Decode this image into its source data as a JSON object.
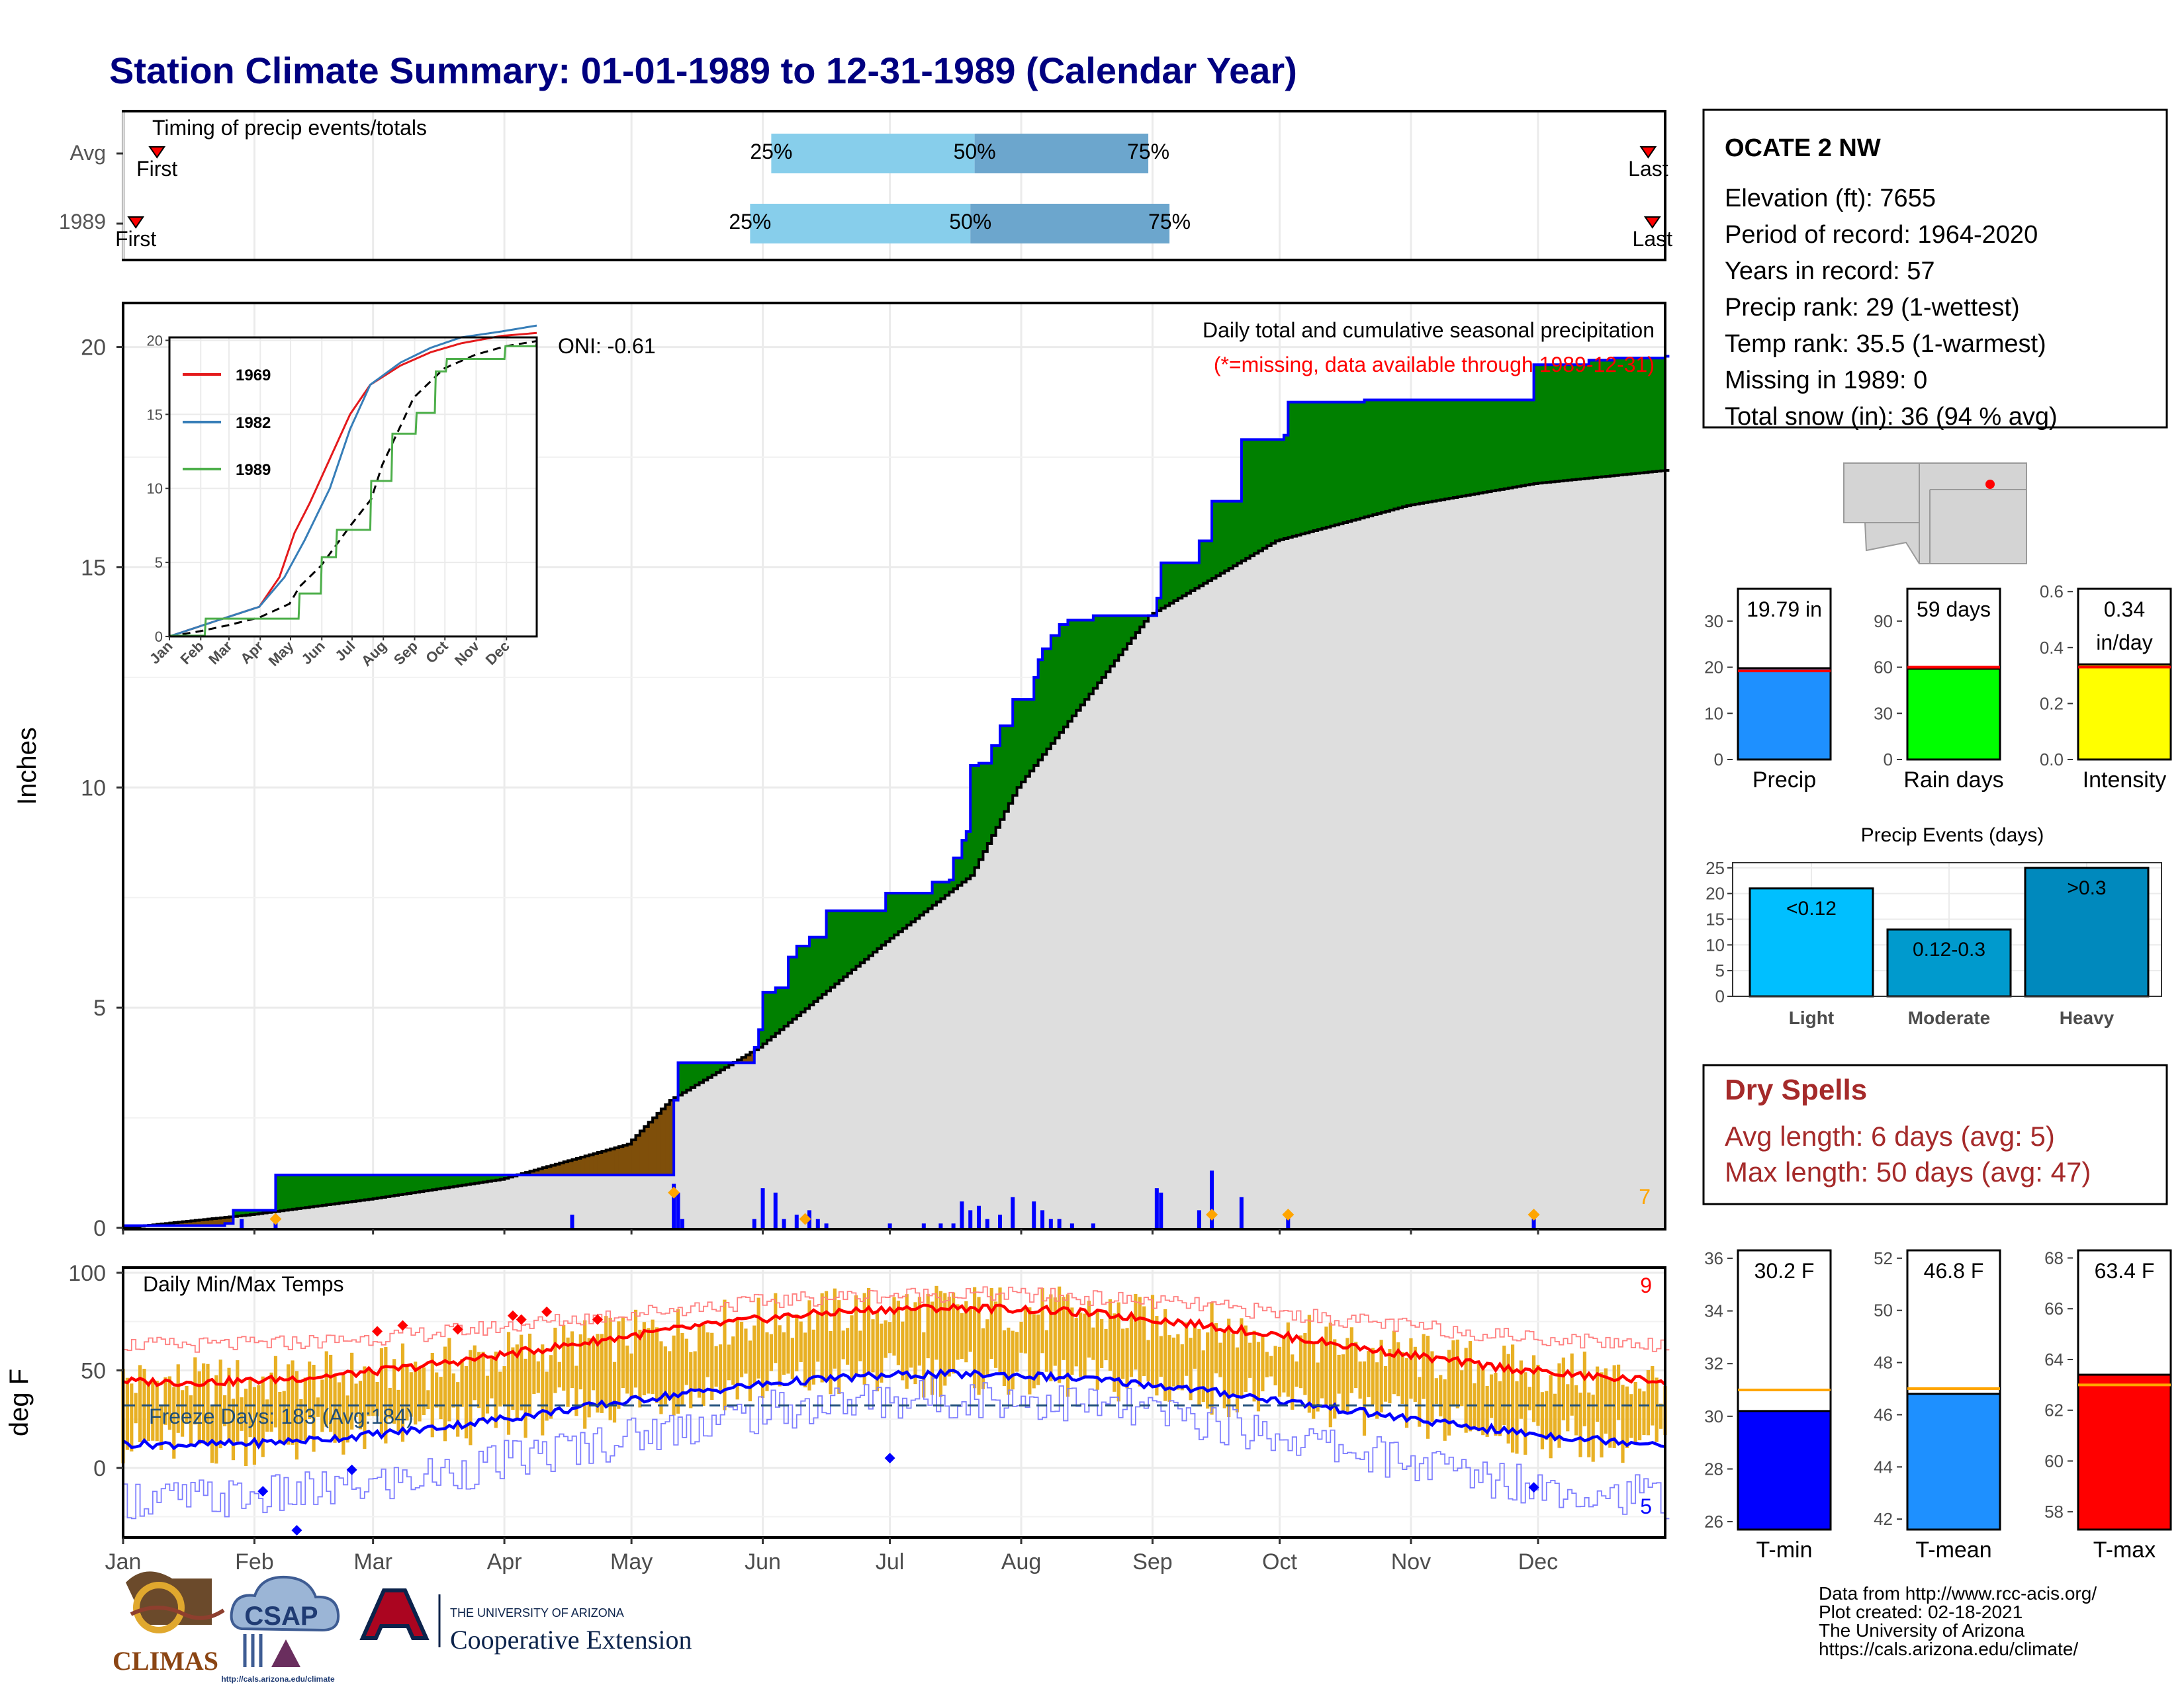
{
  "page": {
    "title": "Station Climate Summary: 01-01-1989 to 12-31-1989 (Calendar Year)",
    "months": [
      "Jan",
      "Feb",
      "Mar",
      "Apr",
      "May",
      "Jun",
      "Jul",
      "Aug",
      "Sep",
      "Oct",
      "Nov",
      "Dec"
    ],
    "months_tilted": [
      "Jan",
      "Feb",
      "Mar",
      "Apr",
      "May",
      "Jun",
      "Jul",
      "Aug",
      "Sep",
      "Oct",
      "Nov",
      "Dec"
    ],
    "footer": {
      "line1": "Data from http://www.rcc-acis.org/",
      "line2": "Plot created: 02-18-2021",
      "line3": "The University of Arizona",
      "line4": "https://cals.arizona.edu/climate/"
    },
    "logos": {
      "climas": "CLIMAS",
      "csap": "CSAP",
      "csap_url": "http://cals.arizona.edu/climate",
      "ua_small": "THE UNIVERSITY OF ARIZONA",
      "coop": "Cooperative Extension"
    }
  },
  "chart_data": [
    {
      "type": "bar",
      "panel": "timing",
      "title": "Timing of precip events/totals",
      "categories": [
        "Avg",
        "1989"
      ],
      "series": [
        {
          "name": "Avg",
          "first": "01-09",
          "p25": "06-03",
          "p50": "07-21",
          "p75": "08-31",
          "last": "12-27"
        },
        {
          "name": "1989",
          "first": "01-04",
          "p25": "05-29",
          "p50": "07-20",
          "p75": "09-05",
          "last": "12-28"
        }
      ],
      "labels": {
        "first": "First",
        "last": "Last",
        "p25": "25%",
        "p50": "50%",
        "p75": "75%"
      }
    },
    {
      "type": "area",
      "panel": "precipitation",
      "title": "Daily total and cumulative seasonal precipitation",
      "subtitle": "(*=missing, data available through 1989-12-31)",
      "oni": "ONI: -0.61",
      "ylabel": "Inches",
      "ylim": [
        0,
        21
      ],
      "yticks": [
        0,
        5,
        10,
        15,
        20
      ],
      "corner_count": "7",
      "cumulative_1989": [
        [
          1,
          0.05
        ],
        [
          25,
          0.1
        ],
        [
          27,
          0.4
        ],
        [
          36,
          0.4
        ],
        [
          37,
          1.2
        ],
        [
          130,
          1.2
        ],
        [
          131,
          2.9
        ],
        [
          132,
          3.75
        ],
        [
          150,
          4.1
        ],
        [
          151,
          4.5
        ],
        [
          152,
          5.35
        ],
        [
          155,
          5.45
        ],
        [
          158,
          6.15
        ],
        [
          160,
          6.4
        ],
        [
          163,
          6.6
        ],
        [
          167,
          7.2
        ],
        [
          181,
          7.6
        ],
        [
          192,
          7.85
        ],
        [
          196,
          7.9
        ],
        [
          197,
          8.4
        ],
        [
          199,
          8.8
        ],
        [
          200,
          9.0
        ],
        [
          201,
          10.5
        ],
        [
          203,
          10.55
        ],
        [
          206,
          10.95
        ],
        [
          208,
          11.4
        ],
        [
          211,
          12.0
        ],
        [
          216,
          12.5
        ],
        [
          217,
          12.9
        ],
        [
          218,
          13.15
        ],
        [
          220,
          13.45
        ],
        [
          222,
          13.7
        ],
        [
          224,
          13.8
        ],
        [
          230,
          13.9
        ],
        [
          244,
          13.9
        ],
        [
          245,
          14.3
        ],
        [
          246,
          15.1
        ],
        [
          255,
          15.6
        ],
        [
          258,
          16.5
        ],
        [
          265,
          17.9
        ],
        [
          275,
          18.0
        ],
        [
          276,
          18.75
        ],
        [
          294,
          18.8
        ],
        [
          333,
          18.8
        ],
        [
          334,
          19.6
        ],
        [
          346,
          19.6
        ],
        [
          347,
          19.7
        ],
        [
          353,
          19.75
        ],
        [
          365,
          19.79
        ]
      ],
      "cumulative_avg": [
        [
          1,
          0.0
        ],
        [
          31,
          0.3
        ],
        [
          59,
          0.65
        ],
        [
          90,
          1.1
        ],
        [
          120,
          1.9
        ],
        [
          130,
          2.9
        ],
        [
          151,
          4.1
        ],
        [
          181,
          6.5
        ],
        [
          201,
          8.0
        ],
        [
          212,
          10.0
        ],
        [
          232,
          12.5
        ],
        [
          243,
          13.9
        ],
        [
          273,
          15.6
        ],
        [
          304,
          16.4
        ],
        [
          334,
          16.9
        ],
        [
          365,
          17.2
        ]
      ],
      "daily_bars": [
        [
          29,
          0.2
        ],
        [
          37,
          0.2
        ],
        [
          107,
          0.3
        ],
        [
          131,
          1.0
        ],
        [
          132,
          0.8
        ],
        [
          133,
          0.2
        ],
        [
          150,
          0.2
        ],
        [
          152,
          0.9
        ],
        [
          155,
          0.8
        ],
        [
          157,
          0.2
        ],
        [
          160,
          0.3
        ],
        [
          163,
          0.4
        ],
        [
          165,
          0.2
        ],
        [
          167,
          0.1
        ],
        [
          182,
          0.1
        ],
        [
          190,
          0.1
        ],
        [
          194,
          0.1
        ],
        [
          197,
          0.1
        ],
        [
          199,
          0.6
        ],
        [
          201,
          0.4
        ],
        [
          203,
          0.5
        ],
        [
          205,
          0.2
        ],
        [
          208,
          0.3
        ],
        [
          211,
          0.7
        ],
        [
          216,
          0.6
        ],
        [
          218,
          0.4
        ],
        [
          220,
          0.2
        ],
        [
          222,
          0.2
        ],
        [
          225,
          0.1
        ],
        [
          230,
          0.1
        ],
        [
          245,
          0.9
        ],
        [
          246,
          0.8
        ],
        [
          255,
          0.4
        ],
        [
          258,
          1.3
        ],
        [
          265,
          0.7
        ],
        [
          276,
          0.3
        ],
        [
          334,
          0.2
        ]
      ],
      "snow_markers": [
        [
          37,
          0.2
        ],
        [
          131,
          0.8
        ],
        [
          162,
          0.2
        ],
        [
          258,
          0.3
        ],
        [
          276,
          0.3
        ],
        [
          334,
          0.3
        ]
      ],
      "legend_1989_area_above": "green",
      "legend_1989_area_below": "brown"
    },
    {
      "type": "line",
      "panel": "inset",
      "series": [
        {
          "name": "1969",
          "values": [
            [
              1,
              0
            ],
            [
              45,
              1
            ],
            [
              90,
              2
            ],
            [
              110,
              4
            ],
            [
              125,
              7
            ],
            [
              140,
              9
            ],
            [
              160,
              12
            ],
            [
              180,
              15
            ],
            [
              200,
              17
            ],
            [
              230,
              18.3
            ],
            [
              260,
              19.2
            ],
            [
              290,
              19.8
            ],
            [
              330,
              20.3
            ],
            [
              365,
              20.5
            ]
          ]
        },
        {
          "name": "1982",
          "values": [
            [
              1,
              0
            ],
            [
              45,
              1
            ],
            [
              90,
              2
            ],
            [
              115,
              4
            ],
            [
              135,
              6.5
            ],
            [
              160,
              10
            ],
            [
              180,
              14
            ],
            [
              200,
              17
            ],
            [
              230,
              18.5
            ],
            [
              260,
              19.5
            ],
            [
              290,
              20.2
            ],
            [
              330,
              20.6
            ],
            [
              365,
              21
            ]
          ]
        },
        {
          "name": "1989",
          "values": [
            [
              1,
              0.05
            ],
            [
              37,
              1.2
            ],
            [
              130,
              2.9
            ],
            [
              152,
              5.35
            ],
            [
              167,
              7.2
            ],
            [
              201,
              10.5
            ],
            [
              222,
              13.7
            ],
            [
              246,
              15.1
            ],
            [
              265,
              17.9
            ],
            [
              276,
              18.75
            ],
            [
              334,
              19.6
            ],
            [
              365,
              19.79
            ]
          ]
        }
      ],
      "ylim": [
        0,
        20
      ],
      "yticks": [
        0,
        5,
        10,
        15,
        20
      ]
    },
    {
      "type": "bar",
      "panel": "daily-temps",
      "title": "Daily Min/Max Temps",
      "ylabel": "deg F",
      "ylim": [
        -35,
        102
      ],
      "yticks": [
        0,
        50,
        100
      ],
      "freeze_line": 32,
      "freeze_label": "Freeze Days: 183 (Avg:184)",
      "count_hot": "9",
      "count_cold": "5"
    },
    {
      "type": "bar",
      "panel": "precip-total",
      "categories": [
        "Precip"
      ],
      "values": [
        19.79
      ],
      "avg": 19.2,
      "ylim": [
        0,
        37
      ],
      "yticks": [
        0,
        10,
        20,
        30
      ],
      "label": "19.79 in",
      "color": "#1E90FF"
    },
    {
      "type": "bar",
      "panel": "rain-days",
      "categories": [
        "Rain days"
      ],
      "values": [
        59
      ],
      "avg": 60,
      "ylim": [
        0,
        111
      ],
      "yticks": [
        0,
        30,
        60,
        90
      ],
      "label": "59 days",
      "color": "#00FF00"
    },
    {
      "type": "bar",
      "panel": "intensity",
      "categories": [
        "Intensity"
      ],
      "values": [
        0.34
      ],
      "avg": 0.33,
      "ylim": [
        0,
        0.61
      ],
      "yticks": [
        0.0,
        0.2,
        0.4,
        0.6
      ],
      "label_line1": "0.34",
      "label_line2": "in/day",
      "color": "#FFFF00"
    },
    {
      "type": "bar",
      "panel": "precip-events",
      "title": "Precip Events (days)",
      "categories": [
        "Light",
        "Moderate",
        "Heavy"
      ],
      "values": [
        21,
        13,
        25
      ],
      "bar_labels": [
        "<0.12",
        "0.12-0.3",
        ">0.3"
      ],
      "colors": [
        "#00BFFF",
        "#009ACD",
        "#0089BD"
      ],
      "ylim": [
        0,
        26
      ],
      "yticks": [
        0,
        5,
        10,
        15,
        20,
        25
      ]
    },
    {
      "type": "bar",
      "panel": "tmin",
      "categories": [
        "T-min"
      ],
      "values": [
        30.2
      ],
      "avg": 31.0,
      "ylim": [
        25.7,
        36.3
      ],
      "yticks": [
        26,
        28,
        30,
        32,
        34,
        36
      ],
      "label": "30.2 F",
      "color": "#0000FF"
    },
    {
      "type": "bar",
      "panel": "tmean",
      "categories": [
        "T-mean"
      ],
      "values": [
        46.8
      ],
      "avg": 47.0,
      "ylim": [
        41.6,
        52.3
      ],
      "yticks": [
        42,
        44,
        46,
        48,
        50,
        52
      ],
      "label": "46.8 F",
      "color": "#1E90FF"
    },
    {
      "type": "bar",
      "panel": "tmax",
      "categories": [
        "T-max"
      ],
      "values": [
        63.4
      ],
      "avg": 63.0,
      "ylim": [
        57.3,
        68.3
      ],
      "yticks": [
        58,
        60,
        62,
        64,
        66,
        68
      ],
      "label": "63.4 F",
      "color": "#FF0000"
    }
  ],
  "station": {
    "name": "OCATE 2 NW",
    "lines": [
      "Elevation (ft): 7655",
      "Period of record: 1964-2020",
      "Years in record: 57",
      "Precip rank: 29 (1-wettest)",
      "Temp rank: 35.5 (1-warmest)",
      "Missing in 1989: 0",
      "Total snow (in): 36 (94 % avg)"
    ]
  },
  "dry_spells": {
    "title": "Dry Spells",
    "avg_length": "Avg length: 6 days (avg: 5)",
    "max_length": "Max length: 50 days (avg: 47)"
  }
}
